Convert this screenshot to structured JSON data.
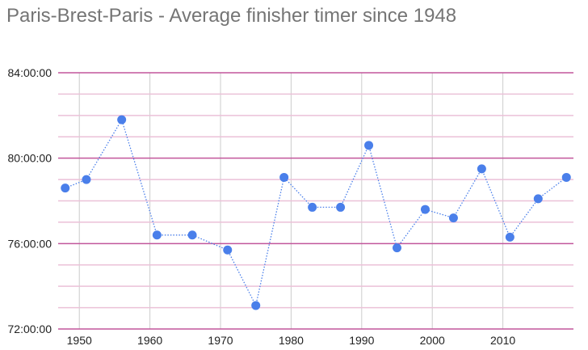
{
  "chart_data": {
    "type": "line",
    "title": "Paris-Brest-Paris - Average finisher timer since 1948",
    "xlabel": "",
    "ylabel": "",
    "x": [
      1948,
      1951,
      1956,
      1961,
      1966,
      1971,
      1975,
      1979,
      1983,
      1987,
      1991,
      1995,
      1999,
      2003,
      2007,
      2011,
      2015,
      2019
    ],
    "y_hours": [
      78.6,
      79.0,
      81.8,
      76.4,
      76.4,
      75.7,
      73.1,
      79.1,
      77.7,
      77.7,
      80.6,
      75.8,
      77.6,
      77.2,
      79.5,
      76.3,
      78.1,
      79.1
    ],
    "xlim": [
      1947,
      2020
    ],
    "ylim": [
      72,
      84
    ],
    "x_ticks": [
      1950,
      1960,
      1970,
      1980,
      1990,
      2000,
      2010
    ],
    "x_tick_labels": [
      "1950",
      "1960",
      "1970",
      "1980",
      "1990",
      "2000",
      "2010"
    ],
    "y_ticks": [
      72,
      76,
      80,
      84
    ],
    "y_tick_labels": [
      "72:00:00",
      "76:00:00",
      "80:00:00",
      "84:00:00"
    ],
    "grid": true,
    "line_style": "dotted",
    "colors": {
      "series": "#4a7fea",
      "major_grid": "#c2569b",
      "minor_grid": "#ebc1d8",
      "vertical_grid": "#cccccc"
    }
  }
}
